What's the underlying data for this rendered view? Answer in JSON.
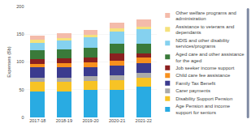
{
  "chart_data": {
    "type": "bar",
    "stacked": true,
    "categories": [
      "2017-18",
      "2018-19",
      "2019-20",
      "2020-21",
      "2021-22"
    ],
    "series": [
      {
        "name": "Age Pension and income\nsupport for seniors",
        "color": "#29ABE2",
        "values": [
          47,
          47,
          49,
          50,
          55
        ]
      },
      {
        "name": "Disability Support Pension",
        "color": "#F7C325",
        "values": [
          17,
          17,
          17,
          17,
          17
        ]
      },
      {
        "name": "Carer payments",
        "color": "#AAAAAA",
        "values": [
          8,
          8,
          8,
          9,
          9
        ]
      },
      {
        "name": "Family Tax Benefit",
        "color": "#3B3B8E",
        "values": [
          18,
          18,
          17,
          17,
          17
        ]
      },
      {
        "name": "Child care fee assistance",
        "color": "#F7901E",
        "values": [
          7,
          8,
          9,
          9,
          10
        ]
      },
      {
        "name": "Job seeker income support",
        "color": "#8B2020",
        "values": [
          8,
          8,
          8,
          14,
          7
        ]
      },
      {
        "name": "Aged care and other assistance\nfor the aged",
        "color": "#3A7A3A",
        "values": [
          16,
          16,
          17,
          17,
          18
        ]
      },
      {
        "name": "NDIS and other disability\nservices/programs",
        "color": "#85D1EF",
        "values": [
          14,
          16,
          19,
          22,
          26
        ]
      },
      {
        "name": "Assistance to veterans and\ndependants",
        "color": "#F5E17C",
        "values": [
          5,
          5,
          5,
          5,
          5
        ]
      },
      {
        "name": "Other welfare programs and\nadministration",
        "color": "#F4BBAA",
        "values": [
          8,
          9,
          9,
          11,
          13
        ]
      }
    ],
    "ylabel": "Expenses ($b)",
    "ylim": [
      0,
      200
    ],
    "yticks": [
      0,
      50,
      100,
      150,
      200
    ],
    "grid": true,
    "legend": "right"
  }
}
